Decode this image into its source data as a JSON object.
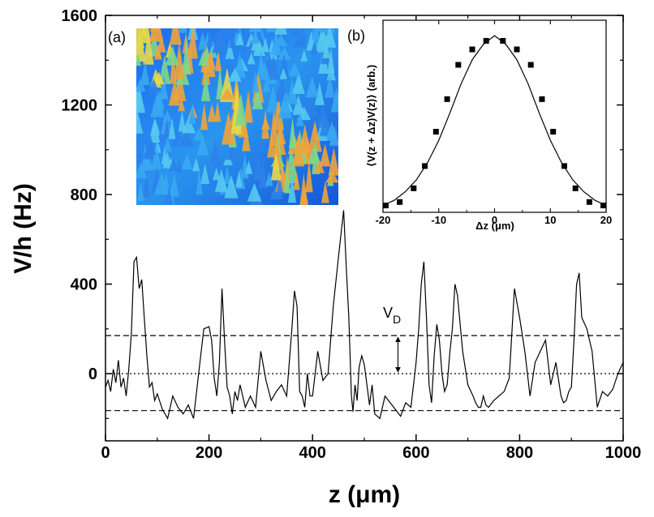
{
  "chart_data": [
    {
      "type": "line",
      "panel": "main",
      "title": "",
      "xlabel": "z (μm)",
      "ylabel": "V/h (Hz)",
      "xlim": [
        0,
        1000
      ],
      "ylim": [
        -300,
        1600
      ],
      "xticks": [
        0,
        200,
        400,
        600,
        800,
        1000
      ],
      "xtick_labels": [
        "0",
        "200",
        "400",
        "600",
        "800",
        "1000"
      ],
      "yticks": [
        0,
        400,
        800,
        1200,
        1600
      ],
      "ytick_labels": [
        "0",
        "400",
        "800",
        "1200",
        "1600"
      ],
      "grid": false,
      "reference_lines": [
        {
          "name": "upper-dashed",
          "y": 170,
          "style": "dashed"
        },
        {
          "name": "zero-dotted",
          "y": 0,
          "style": "dotted"
        },
        {
          "name": "lower-dashed",
          "y": -165,
          "style": "dashed"
        }
      ],
      "annotation": {
        "label_main": "V",
        "label_sub": "D",
        "x": 565,
        "y_from": 0,
        "y_to": 170
      },
      "series": [
        {
          "name": "V(z)",
          "x": [
            0,
            5,
            10,
            15,
            20,
            25,
            30,
            35,
            40,
            45,
            50,
            55,
            60,
            65,
            70,
            75,
            80,
            85,
            90,
            95,
            100,
            110,
            120,
            130,
            140,
            150,
            160,
            170,
            180,
            190,
            200,
            205,
            210,
            215,
            220,
            225,
            230,
            235,
            240,
            245,
            250,
            255,
            260,
            270,
            280,
            290,
            300,
            310,
            320,
            330,
            340,
            350,
            360,
            365,
            370,
            375,
            380,
            385,
            390,
            395,
            400,
            410,
            420,
            430,
            440,
            450,
            460,
            465,
            470,
            475,
            478,
            482,
            486,
            490,
            495,
            500,
            510,
            515,
            520,
            530,
            540,
            550,
            560,
            570,
            580,
            590,
            600,
            605,
            610,
            615,
            620,
            625,
            630,
            635,
            640,
            645,
            650,
            655,
            660,
            665,
            670,
            675,
            680,
            690,
            700,
            710,
            715,
            720,
            725,
            730,
            735,
            740,
            750,
            760,
            770,
            780,
            790,
            800,
            810,
            820,
            830,
            840,
            850,
            860,
            870,
            880,
            885,
            890,
            895,
            900,
            905,
            910,
            915,
            920,
            930,
            940,
            950,
            960,
            970,
            980,
            990,
            1000
          ],
          "y": [
            -60,
            -30,
            -80,
            20,
            -40,
            60,
            -60,
            -20,
            -100,
            20,
            180,
            500,
            520,
            380,
            420,
            250,
            80,
            -60,
            -40,
            -120,
            -90,
            -160,
            -200,
            -100,
            -150,
            -180,
            -140,
            -200,
            0,
            200,
            210,
            150,
            -20,
            -100,
            50,
            380,
            150,
            -60,
            -100,
            -180,
            -80,
            -120,
            -50,
            -150,
            -100,
            -150,
            100,
            -30,
            -120,
            -80,
            -50,
            -100,
            200,
            370,
            300,
            -80,
            -100,
            -150,
            0,
            -100,
            -100,
            100,
            -30,
            0,
            300,
            520,
            730,
            480,
            250,
            -100,
            -170,
            -50,
            -120,
            30,
            80,
            40,
            -140,
            -50,
            -180,
            -200,
            -100,
            -130,
            -160,
            -190,
            -130,
            -150,
            50,
            200,
            400,
            500,
            250,
            -50,
            -130,
            80,
            220,
            150,
            0,
            -80,
            -50,
            90,
            200,
            400,
            350,
            100,
            -50,
            -100,
            -130,
            -150,
            -150,
            -100,
            -140,
            -150,
            -120,
            -100,
            -80,
            -20,
            380,
            250,
            100,
            -100,
            50,
            100,
            150,
            -50,
            50,
            -100,
            -130,
            -120,
            -80,
            -60,
            150,
            400,
            450,
            250,
            200,
            100,
            -150,
            -80,
            -100,
            -70,
            0,
            50
          ]
        }
      ]
    },
    {
      "type": "scatter",
      "panel": "inset-b",
      "panel_label": "(b)",
      "title": "",
      "xlabel": "Δz (μm)",
      "ylabel": "⟨V(z + Δz)V(z)⟩ (arb.)",
      "xlim": [
        -20,
        20
      ],
      "ylim": [
        0,
        1.12
      ],
      "xticks": [
        -20,
        -10,
        0,
        10,
        20
      ],
      "xtick_labels": [
        "-20",
        "-10",
        "0",
        "10",
        "20"
      ],
      "series": [
        {
          "name": "data",
          "marker": "square",
          "x": [
            -19.5,
            -17,
            -14.5,
            -12.5,
            -10.5,
            -8.5,
            -6.5,
            -4,
            -1.5,
            1.5,
            4,
            6.5,
            8.5,
            10.5,
            12.5,
            14.5,
            17,
            19.5
          ],
          "y": [
            0.04,
            0.06,
            0.14,
            0.27,
            0.47,
            0.66,
            0.86,
            0.95,
            1.0,
            1.0,
            0.95,
            0.86,
            0.66,
            0.47,
            0.27,
            0.14,
            0.06,
            0.04
          ]
        },
        {
          "name": "gaussian-fit",
          "style": "line",
          "x": [
            -20,
            -18,
            -16,
            -14,
            -12,
            -10,
            -8,
            -6,
            -4,
            -2,
            0,
            2,
            4,
            6,
            8,
            10,
            12,
            14,
            16,
            18,
            20
          ],
          "y": [
            0.04,
            0.07,
            0.12,
            0.19,
            0.29,
            0.42,
            0.58,
            0.75,
            0.89,
            0.98,
            1.03,
            0.98,
            0.89,
            0.75,
            0.58,
            0.42,
            0.29,
            0.19,
            0.12,
            0.07,
            0.04
          ]
        }
      ]
    }
  ],
  "inset_a": {
    "panel_label": "(a)",
    "image": "3D surface plot of the random potential, blue background with yellow-orange peaks"
  }
}
